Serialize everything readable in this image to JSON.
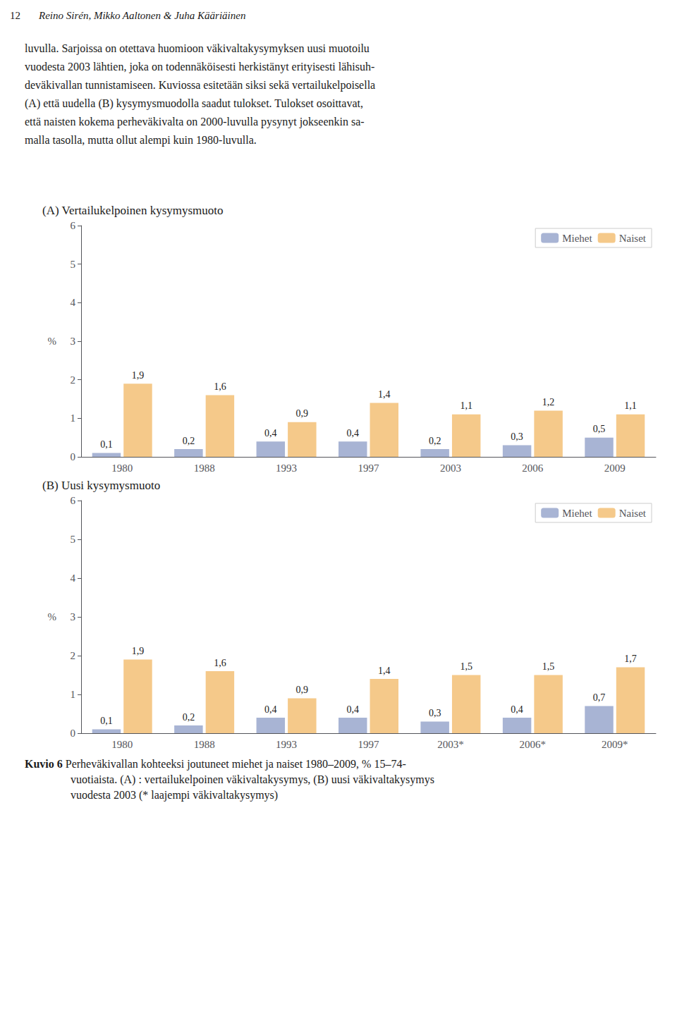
{
  "chart_data": [
    {
      "type": "bar",
      "title": "(A) Vertailukelpoinen kysymysmuoto",
      "categories": [
        "1980",
        "1988",
        "1993",
        "1997",
        "2003",
        "2006",
        "2009"
      ],
      "series": [
        {
          "name": "Miehet",
          "color": "#a8b4d4",
          "values": [
            0.1,
            0.2,
            0.4,
            0.4,
            0.2,
            0.3,
            0.5
          ],
          "value_labels": [
            "0,1",
            "0,2",
            "0,4",
            "0,4",
            "0,2",
            "0,3",
            "0,5"
          ]
        },
        {
          "name": "Naiset",
          "color": "#f5c98a",
          "values": [
            1.9,
            1.6,
            0.9,
            1.4,
            1.1,
            1.2,
            1.1
          ],
          "value_labels": [
            "1,9",
            "1,6",
            "0,9",
            "1,4",
            "1,1",
            "1,2",
            "1,1"
          ]
        }
      ],
      "ylabel": "%",
      "ylim": [
        0,
        6
      ],
      "yticks": [
        0,
        1,
        2,
        3,
        4,
        5,
        6
      ],
      "grid": false,
      "legend": "upper right",
      "data_labels": true,
      "annotations": [
        "12",
        "Reino Sirén, Mikko Aaltonen & Juha Kääriäinen",
        "luvulla. Sarjoissa on otettava huomioon väkivaltakysymyksen uusi muotoilu",
        "vuodesta 2003 lähtien, joka on todennäköisesti herkistänyt erityisesti lähisuh-",
        "deväkivallan tunnistamiseen. Kuviossa esitetään siksi sekä vertailukelpoisella",
        "(A) että uudella (B) kysymysmuodolla saadut tulokset. Tulokset osoittavat,",
        "että naisten kokema perheväkivalta on 2000-luvulla pysynyt jokseenkin sa-",
        "malla tasolla, mutta ollut alempi kuin 1980-luvulla."
      ]
    },
    {
      "type": "bar",
      "title": "(B) Uusi kysymysmuoto",
      "categories": [
        "1980",
        "1988",
        "1993",
        "1997",
        "2003*",
        "2006*",
        "2009*"
      ],
      "series": [
        {
          "name": "Miehet",
          "color": "#a8b4d4",
          "values": [
            0.1,
            0.2,
            0.4,
            0.4,
            0.3,
            0.4,
            0.7
          ],
          "value_labels": [
            "0,1",
            "0,2",
            "0,4",
            "0,4",
            "0,3",
            "0,4",
            "0,7"
          ]
        },
        {
          "name": "Naiset",
          "color": "#f5c98a",
          "values": [
            1.9,
            1.6,
            0.9,
            1.4,
            1.5,
            1.5,
            1.7
          ],
          "value_labels": [
            "1,9",
            "1,6",
            "0,9",
            "1,4",
            "1,5",
            "1,5",
            "1,7"
          ]
        }
      ],
      "ylabel": "%",
      "ylim": [
        0,
        6
      ],
      "yticks": [
        0,
        1,
        2,
        3,
        4,
        5,
        6
      ],
      "grid": false,
      "legend": "upper right",
      "data_labels": true,
      "annotations": [
        "Kuvio 6",
        "Perheväkivallan kohteeksi joutuneet miehet ja naiset 1980–2009, % 15–74-",
        "vuotiaista. (A) : vertailukelpoinen väkivaltakysymys, (B) uusi väkivaltakysymys",
        "vuodesta 2003 (* laajempi väkivaltakysymys)"
      ]
    }
  ]
}
